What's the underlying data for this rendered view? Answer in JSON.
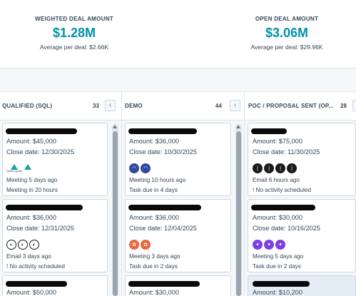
{
  "metrics": [
    {
      "label": "WEIGHTED DEAL AMOUNT",
      "value": "$1.28M",
      "sub": "Average per deal: $2.66K"
    },
    {
      "label": "OPEN DEAL AMOUNT",
      "value": "$3.06M",
      "sub": "Average per deal: $29.96K"
    }
  ],
  "columns": [
    {
      "title": "QUALIFIED (SQL)",
      "count": "33",
      "cards": [
        {
          "amount": "Amount: $45,000",
          "close": "Close date: 12/30/2025",
          "act1": "Meeting 5 days ago",
          "act2": "Meeting in 20 hours",
          "logo_text": "Qpster Qpster"
        },
        {
          "amount": "Amount: $36,000",
          "close": "Close date: 12/31/2025",
          "act1": "Email 3 days ago",
          "act2": "! No activity scheduled"
        },
        {
          "amount": "Amount: $50,000"
        }
      ]
    },
    {
      "title": "DEMO",
      "count": "44",
      "cards": [
        {
          "amount": "Amount: $36,000",
          "close": "Close date: 10/30/2025",
          "act1": "Meeting 10 hours ago",
          "act2": "Task due in 4 days"
        },
        {
          "amount": "Amount: $36,000",
          "close": "Close date: 12/04/2025",
          "act1": "Meeting 3 days ago",
          "act2": "Task due in 2 days"
        },
        {
          "amount": "Amount: $30,000"
        }
      ]
    },
    {
      "title": "POC / PROPOSAL SENT (OP...",
      "count": "28",
      "cards": [
        {
          "amount": "Amount: $75,000",
          "close": "Close date: 11/30/2025",
          "act1": "Email 6 hours ago",
          "act2": "! No activity scheduled"
        },
        {
          "amount": "Amount: $30,000",
          "close": "Close date: 10/16/2025",
          "act1": "Meeting 5 days ago",
          "act2": "Task due in 2 days"
        },
        {
          "amount": "Amount: $10,200"
        }
      ]
    }
  ],
  "icons": {
    "collapse": "chevron-left-icon"
  },
  "colors": {
    "accent": "#0091ae",
    "orange": "#e8673c",
    "purple": "#7b3fe4",
    "navy": "#2f4a9e"
  }
}
